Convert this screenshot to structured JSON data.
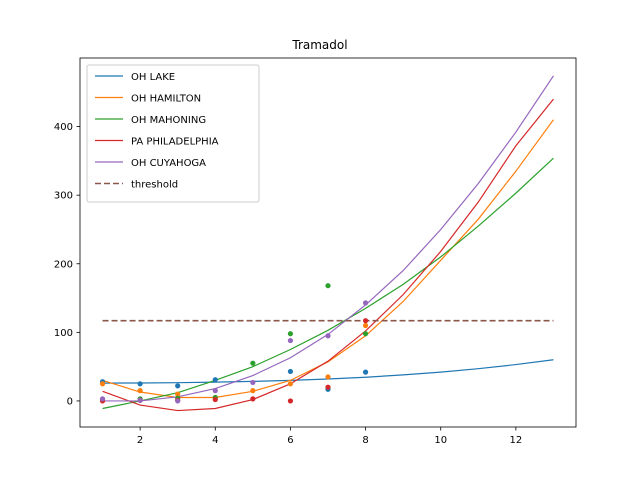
{
  "chart_data": {
    "type": "scatter",
    "title": "Tramadol",
    "xlim": [
      0.4,
      13.6
    ],
    "ylim": [
      -38,
      500
    ],
    "x_ticks": [
      2,
      4,
      6,
      8,
      10,
      12
    ],
    "y_ticks": [
      0,
      100,
      200,
      300,
      400
    ],
    "x_tick_labels": [
      "2",
      "4",
      "6",
      "8",
      "10",
      "12"
    ],
    "y_tick_labels": [
      "0",
      "100",
      "200",
      "300",
      "400"
    ],
    "grid": false,
    "legend_position": "top-left",
    "series": [
      {
        "name": "OH LAKE",
        "color": "#1f77b4",
        "points": [
          [
            1,
            28
          ],
          [
            2,
            25
          ],
          [
            3,
            22
          ],
          [
            4,
            31
          ],
          [
            6,
            43
          ],
          [
            7,
            17
          ],
          [
            8,
            42
          ]
        ],
        "fit": [
          [
            1,
            26
          ],
          [
            2,
            26.2
          ],
          [
            3,
            26.6
          ],
          [
            4,
            27.4
          ],
          [
            5,
            28.5
          ],
          [
            6,
            30
          ],
          [
            7,
            32
          ],
          [
            8,
            34.5
          ],
          [
            9,
            38
          ],
          [
            10,
            42
          ],
          [
            11,
            47
          ],
          [
            12,
            53
          ],
          [
            13,
            60
          ]
        ]
      },
      {
        "name": "OH HAMILTON",
        "color": "#ff7f0e",
        "points": [
          [
            1,
            25
          ],
          [
            2,
            15
          ],
          [
            3,
            10
          ],
          [
            4,
            5
          ],
          [
            5,
            15
          ],
          [
            6,
            25
          ],
          [
            7,
            35
          ],
          [
            8,
            110
          ]
        ],
        "fit": [
          [
            1,
            30
          ],
          [
            2,
            13
          ],
          [
            3,
            5
          ],
          [
            4,
            5
          ],
          [
            5,
            14
          ],
          [
            6,
            30
          ],
          [
            7,
            57
          ],
          [
            8,
            95
          ],
          [
            9,
            145
          ],
          [
            10,
            205
          ],
          [
            11,
            265
          ],
          [
            12,
            335
          ],
          [
            13,
            410
          ]
        ]
      },
      {
        "name": "OH MAHONING",
        "color": "#2ca02c",
        "points": [
          [
            1,
            2
          ],
          [
            2,
            3
          ],
          [
            3,
            4
          ],
          [
            4,
            5
          ],
          [
            5,
            55
          ],
          [
            6,
            98
          ],
          [
            7,
            168
          ],
          [
            8,
            98
          ]
        ],
        "fit": [
          [
            1,
            -11
          ],
          [
            2,
            0
          ],
          [
            3,
            12
          ],
          [
            4,
            30
          ],
          [
            5,
            50
          ],
          [
            6,
            75
          ],
          [
            7,
            103
          ],
          [
            8,
            135
          ],
          [
            9,
            170
          ],
          [
            10,
            210
          ],
          [
            11,
            255
          ],
          [
            12,
            303
          ],
          [
            13,
            354
          ]
        ]
      },
      {
        "name": "PA PHILADELPHIA",
        "color": "#d62728",
        "points": [
          [
            1,
            0
          ],
          [
            2,
            1
          ],
          [
            3,
            1
          ],
          [
            4,
            2
          ],
          [
            5,
            3
          ],
          [
            6,
            0
          ],
          [
            7,
            20
          ],
          [
            8,
            117
          ]
        ],
        "fit": [
          [
            1,
            14
          ],
          [
            2,
            -6
          ],
          [
            3,
            -14
          ],
          [
            4,
            -11
          ],
          [
            5,
            2
          ],
          [
            6,
            25
          ],
          [
            7,
            58
          ],
          [
            8,
            102
          ],
          [
            9,
            155
          ],
          [
            10,
            218
          ],
          [
            11,
            290
          ],
          [
            12,
            372
          ],
          [
            13,
            440
          ]
        ]
      },
      {
        "name": "OH CUYAHOGA",
        "color": "#9467bd",
        "points": [
          [
            1,
            3
          ],
          [
            2,
            1
          ],
          [
            3,
            0
          ],
          [
            4,
            15
          ],
          [
            5,
            27
          ],
          [
            6,
            88
          ],
          [
            7,
            95
          ],
          [
            8,
            143
          ]
        ],
        "fit": [
          [
            1,
            0
          ],
          [
            2,
            0
          ],
          [
            3,
            6
          ],
          [
            4,
            18
          ],
          [
            5,
            37
          ],
          [
            6,
            63
          ],
          [
            7,
            97
          ],
          [
            8,
            140
          ],
          [
            9,
            190
          ],
          [
            10,
            250
          ],
          [
            11,
            317
          ],
          [
            12,
            392
          ],
          [
            13,
            474
          ]
        ]
      }
    ],
    "threshold": {
      "name": "threshold",
      "value": 117,
      "color": "#8c564b",
      "x_range": [
        1,
        13
      ]
    }
  }
}
